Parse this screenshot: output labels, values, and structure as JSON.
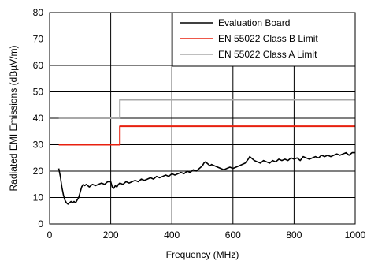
{
  "chart_data": {
    "type": "line",
    "xlabel": "Frequency (MHz)",
    "ylabel": "Radiated EMI Emissions (dBµV/m)",
    "xlim": [
      0,
      1000
    ],
    "ylim": [
      0,
      80
    ],
    "xticks": [
      0,
      200,
      400,
      600,
      800,
      1000
    ],
    "yticks": [
      0,
      10,
      20,
      30,
      40,
      50,
      60,
      70,
      80
    ],
    "grid": true,
    "legend_position": "top-right",
    "series": [
      {
        "name": "Evaluation Board",
        "color": "#000000",
        "x": [
          30,
          35,
          40,
          45,
          50,
          55,
          60,
          65,
          70,
          75,
          80,
          85,
          90,
          95,
          100,
          105,
          110,
          115,
          120,
          130,
          140,
          150,
          160,
          170,
          180,
          190,
          200,
          205,
          210,
          215,
          220,
          225,
          230,
          240,
          250,
          260,
          270,
          280,
          290,
          300,
          310,
          320,
          330,
          340,
          350,
          360,
          370,
          380,
          390,
          400,
          410,
          420,
          430,
          440,
          450,
          460,
          470,
          480,
          490,
          500,
          505,
          510,
          515,
          520,
          525,
          530,
          540,
          550,
          560,
          570,
          580,
          590,
          600,
          610,
          620,
          630,
          640,
          650,
          655,
          660,
          670,
          680,
          690,
          700,
          710,
          720,
          730,
          740,
          750,
          760,
          770,
          780,
          790,
          800,
          810,
          820,
          830,
          840,
          850,
          860,
          870,
          880,
          890,
          900,
          910,
          920,
          930,
          940,
          950,
          960,
          970,
          980,
          990,
          1000
        ],
        "y": [
          21,
          18,
          14,
          11,
          9,
          8,
          7.5,
          8,
          8.5,
          8,
          8.5,
          8,
          9,
          10,
          12,
          14,
          15,
          14.5,
          15,
          14,
          15,
          14.5,
          15,
          15.5,
          15,
          16,
          16,
          14,
          13.5,
          14.5,
          14,
          15,
          15.5,
          15,
          16,
          15.5,
          16,
          16.5,
          16,
          17,
          16.5,
          17,
          17.5,
          17,
          18,
          17.5,
          18,
          18.5,
          18,
          19,
          18.5,
          19,
          19.5,
          19,
          20,
          19.5,
          20.5,
          20,
          21,
          22,
          23,
          23.5,
          23,
          22.5,
          22,
          22.5,
          22,
          21.5,
          21,
          20.5,
          21,
          21.5,
          21,
          21.5,
          22,
          22.5,
          23,
          24.5,
          25.5,
          25,
          24,
          23.5,
          23,
          24,
          23.5,
          23,
          24,
          23.5,
          24.5,
          24,
          24.5,
          24,
          25,
          24.5,
          25,
          24,
          25.5,
          25,
          24.5,
          25,
          25.5,
          25,
          26,
          25.5,
          26,
          25.5,
          26,
          26.5,
          26,
          26.5,
          27,
          26,
          27,
          27
        ]
      },
      {
        "name": "EN 55022 Class B Limit",
        "color": "#e8200f",
        "x": [
          30,
          230,
          230,
          1000
        ],
        "y": [
          30,
          30,
          37,
          37
        ]
      },
      {
        "name": "EN 55022 Class A Limit",
        "color": "#a8a8a8",
        "x": [
          30,
          230,
          230,
          1000
        ],
        "y": [
          40,
          40,
          47,
          47
        ]
      }
    ]
  }
}
